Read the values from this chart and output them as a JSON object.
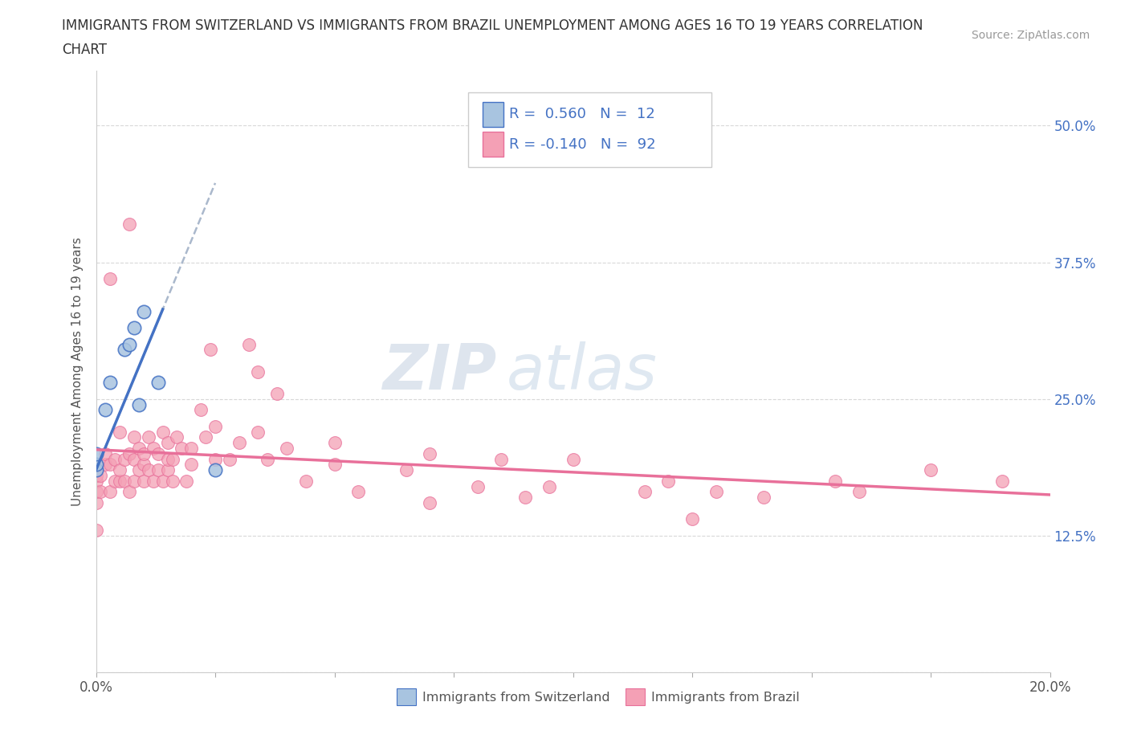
{
  "title_line1": "IMMIGRANTS FROM SWITZERLAND VS IMMIGRANTS FROM BRAZIL UNEMPLOYMENT AMONG AGES 16 TO 19 YEARS CORRELATION",
  "title_line2": "CHART",
  "source_text": "Source: ZipAtlas.com",
  "ylabel": "Unemployment Among Ages 16 to 19 years",
  "legend_bottom": [
    "Immigrants from Switzerland",
    "Immigrants from Brazil"
  ],
  "r_switzerland": 0.56,
  "n_switzerland": 12,
  "r_brazil": -0.14,
  "n_brazil": 92,
  "xlim": [
    0,
    0.2
  ],
  "ylim": [
    0,
    0.55
  ],
  "color_switzerland": "#a8c4e0",
  "color_brazil": "#f4a0b5",
  "color_line_switzerland": "#4472c4",
  "color_line_brazil": "#e8709a",
  "color_dashed": "#aab8cc",
  "background_color": "#ffffff",
  "watermark_zip": "ZIP",
  "watermark_atlas": "atlas",
  "sw_x": [
    0.0,
    0.0,
    0.0,
    0.002,
    0.003,
    0.006,
    0.007,
    0.008,
    0.009,
    0.01,
    0.013,
    0.025
  ],
  "sw_y": [
    0.185,
    0.19,
    0.2,
    0.24,
    0.265,
    0.295,
    0.3,
    0.315,
    0.245,
    0.33,
    0.265,
    0.185
  ],
  "br_x": [
    0.0,
    0.0,
    0.0,
    0.0,
    0.0,
    0.0,
    0.001,
    0.001,
    0.002,
    0.002,
    0.003,
    0.003,
    0.004,
    0.004,
    0.005,
    0.005,
    0.005,
    0.006,
    0.006,
    0.007,
    0.007,
    0.008,
    0.008,
    0.008,
    0.009,
    0.009,
    0.01,
    0.01,
    0.01,
    0.011,
    0.011,
    0.012,
    0.012,
    0.013,
    0.013,
    0.014,
    0.014,
    0.015,
    0.015,
    0.015,
    0.016,
    0.016,
    0.017,
    0.018,
    0.019,
    0.02,
    0.02,
    0.022,
    0.023,
    0.025,
    0.025,
    0.028,
    0.03,
    0.032,
    0.034,
    0.036,
    0.04,
    0.044,
    0.05,
    0.055,
    0.065,
    0.07,
    0.08,
    0.09,
    0.1,
    0.12,
    0.13,
    0.14,
    0.155,
    0.16,
    0.175,
    0.19
  ],
  "br_y": [
    0.13,
    0.155,
    0.165,
    0.175,
    0.18,
    0.19,
    0.165,
    0.18,
    0.19,
    0.2,
    0.165,
    0.19,
    0.175,
    0.195,
    0.175,
    0.185,
    0.22,
    0.175,
    0.195,
    0.165,
    0.2,
    0.175,
    0.195,
    0.215,
    0.185,
    0.205,
    0.175,
    0.19,
    0.2,
    0.185,
    0.215,
    0.175,
    0.205,
    0.185,
    0.2,
    0.175,
    0.22,
    0.185,
    0.195,
    0.21,
    0.175,
    0.195,
    0.215,
    0.205,
    0.175,
    0.19,
    0.205,
    0.24,
    0.215,
    0.195,
    0.225,
    0.195,
    0.21,
    0.3,
    0.22,
    0.195,
    0.205,
    0.175,
    0.19,
    0.165,
    0.185,
    0.155,
    0.17,
    0.16,
    0.195,
    0.175,
    0.165,
    0.16,
    0.175,
    0.165,
    0.185,
    0.175
  ],
  "br_extra_x": [
    0.003,
    0.007,
    0.024,
    0.034,
    0.038,
    0.05,
    0.07,
    0.085,
    0.095,
    0.115,
    0.125
  ],
  "br_extra_y": [
    0.36,
    0.41,
    0.295,
    0.275,
    0.255,
    0.21,
    0.2,
    0.195,
    0.17,
    0.165,
    0.14
  ]
}
